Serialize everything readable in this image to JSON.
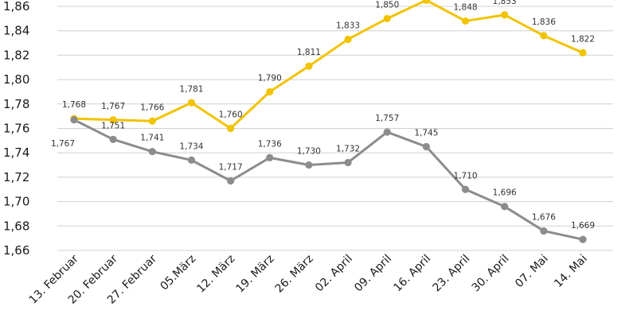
{
  "chart_data": {
    "type": "line",
    "title": "",
    "xlabel": "",
    "ylabel": "",
    "ylim": [
      1.66,
      1.86
    ],
    "yticks": [
      "1,66",
      "1,68",
      "1,70",
      "1,72",
      "1,74",
      "1,76",
      "1,78",
      "1,80",
      "1,82",
      "1,84",
      "1,86"
    ],
    "ytick_values": [
      1.66,
      1.68,
      1.7,
      1.72,
      1.74,
      1.76,
      1.78,
      1.8,
      1.82,
      1.84,
      1.86
    ],
    "grid": true,
    "categories": [
      "13. Februar",
      "20. Februar",
      "27. Februar",
      "05.März",
      "12. März",
      "19. März",
      "26. März",
      "02. April",
      "09. April",
      "16. April",
      "23. April",
      "30. April",
      "07. Mai",
      "14. Mai"
    ],
    "series": [
      {
        "name": "yellow-series",
        "color": "#f2c300",
        "values": [
          1.768,
          1.767,
          1.766,
          1.781,
          1.76,
          1.79,
          1.811,
          1.833,
          1.85,
          1.865,
          1.848,
          1.853,
          1.836,
          1.822
        ],
        "labels": [
          "1,768",
          "1,767",
          "1,766",
          "1,781",
          "1,760",
          "1,790",
          "1,811",
          "1,833",
          "1,850",
          "",
          "1,848",
          "1,853",
          "1,836",
          "1,822"
        ]
      },
      {
        "name": "gray-series",
        "color": "#8c8c8c",
        "values": [
          1.767,
          1.751,
          1.741,
          1.734,
          1.717,
          1.736,
          1.73,
          1.732,
          1.757,
          1.745,
          1.71,
          1.696,
          1.676,
          1.669
        ],
        "labels": [
          "1,767",
          "1,751",
          "1,741",
          "1,734",
          "1,717",
          "1,736",
          "1,730",
          "1,732",
          "1,757",
          "1,745",
          "1,710",
          "1,696",
          "1,676",
          "1,669"
        ]
      }
    ]
  }
}
